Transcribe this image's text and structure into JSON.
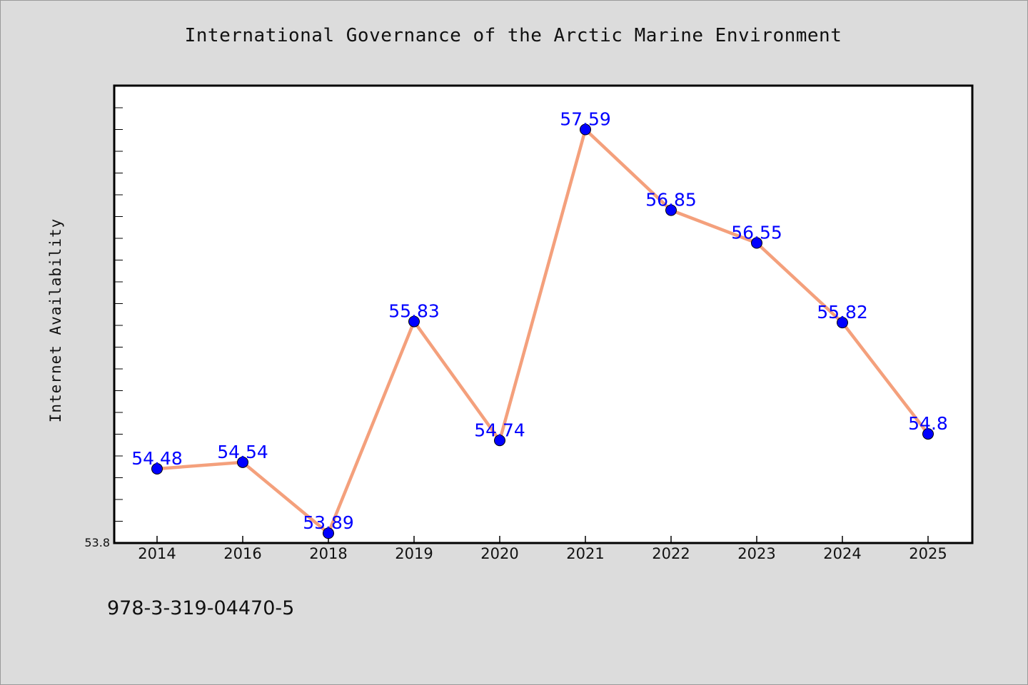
{
  "chart_data": {
    "type": "line",
    "title": "International Governance of the Arctic Marine Environment",
    "xlabel": "",
    "ylabel": "Internet Availability",
    "categories": [
      "2014",
      "2016",
      "2018",
      "2019",
      "2020",
      "2021",
      "2022",
      "2023",
      "2024",
      "2025"
    ],
    "series": [
      {
        "values": [
          54.48,
          54.54,
          53.89,
          55.83,
          54.74,
          57.59,
          56.85,
          56.55,
          55.82,
          54.8
        ],
        "data_labels": [
          "54.48",
          "54.54",
          "53.89",
          "55.83",
          "54.74",
          "57.59",
          "56.85",
          "56.55",
          "55.82",
          "54.8"
        ],
        "line_color": "#f4a07c",
        "marker_color": "#0000ff"
      }
    ],
    "ylim": [
      53.8,
      58.0
    ],
    "y_tick_labels": [
      "53.8"
    ],
    "grid": false,
    "colors": {
      "background": "#dcdcdc",
      "plot_background": "#ffffff",
      "label_color": "#0000ff"
    }
  },
  "footer": {
    "text": "978-3-319-04470-5"
  }
}
